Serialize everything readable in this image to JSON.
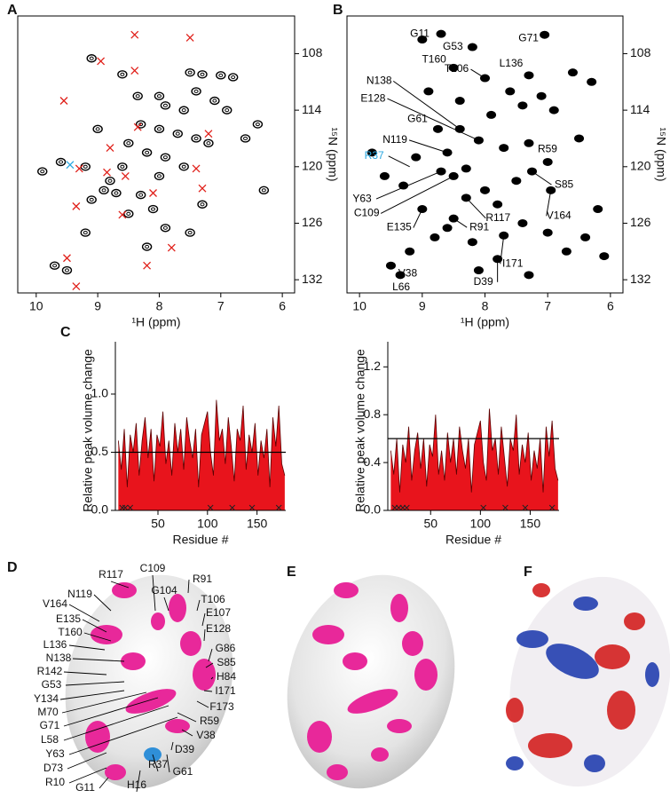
{
  "panel_labels": [
    "A",
    "B",
    "C",
    "D",
    "E",
    "F"
  ],
  "chart_data": [
    {
      "type": "spectrum",
      "x_label": "¹H (ppm)",
      "y_label": "¹⁵N (ppm)",
      "y_axis_side": "right",
      "xlim": [
        10.3,
        5.8
      ],
      "ylim": [
        104,
        133.4
      ],
      "xticks": [
        10,
        9,
        8,
        7,
        6
      ],
      "yticks": [
        108,
        114,
        120,
        126,
        132
      ],
      "series": [
        {
          "marker": "outline",
          "color": "#000000",
          "x": [
            9.1,
            7.5,
            7.3,
            7.0,
            6.8,
            7.4,
            8.0,
            7.9,
            7.6,
            7.1,
            6.9,
            8.3,
            8.0,
            7.7,
            7.4,
            7.2,
            8.5,
            8.2,
            7.9,
            8.6,
            8.8,
            8.9,
            8.7,
            8.3,
            8.0,
            7.6,
            6.4,
            6.6,
            9.6,
            9.2,
            9.1,
            8.5,
            7.9,
            7.5,
            9.2,
            8.2,
            9.7,
            9.5,
            7.3,
            8.1,
            6.3,
            9.9,
            9.0,
            8.35,
            8.6
          ],
          "y": [
            108.5,
            110,
            110.2,
            110.3,
            110.5,
            112,
            112.5,
            113.5,
            114,
            113,
            114,
            115.5,
            116,
            116.5,
            117,
            117.5,
            117.5,
            118.5,
            119,
            120,
            121.5,
            122.5,
            122.8,
            123,
            121,
            120,
            115.5,
            117,
            119.5,
            120,
            123.5,
            125,
            126.5,
            127,
            127,
            128.5,
            130.5,
            131,
            124,
            124.5,
            122.5,
            120.5,
            116,
            112.5,
            110.2
          ]
        },
        {
          "marker": "cross",
          "color": "#e0201a",
          "x": [
            8.4,
            7.5,
            8.95,
            8.4,
            9.55,
            8.35,
            8.8,
            7.2,
            7.4,
            8.85,
            8.55,
            9.3,
            8.1,
            7.3,
            9.35,
            8.6,
            9.5,
            8.2,
            7.8,
            9.35
          ],
          "y": [
            106,
            106.3,
            108.8,
            109.8,
            113,
            115.8,
            118,
            116.5,
            120.2,
            120.6,
            121,
            120.2,
            122.8,
            122.3,
            124.2,
            125.1,
            129.7,
            130.5,
            128.6,
            132.7
          ]
        },
        {
          "marker": "cross",
          "color": "#2aa7e0",
          "x": [
            9.45
          ],
          "y": [
            119.8
          ]
        }
      ]
    },
    {
      "type": "spectrum",
      "x_label": "¹H (ppm)",
      "y_label": "¹⁵N (ppm)",
      "y_axis_side": "right",
      "xlim": [
        10.2,
        5.8
      ],
      "ylim": [
        104,
        133.4
      ],
      "xticks": [
        10,
        9,
        8,
        7,
        6
      ],
      "yticks": [
        108,
        114,
        120,
        126,
        132
      ],
      "series": [
        {
          "marker": "filled",
          "color": "#000000",
          "x": [
            8.7,
            8.2,
            7.05,
            8.5,
            8.0,
            7.3,
            8.4,
            8.1,
            8.75,
            8.6,
            7.3,
            8.7,
            8.5,
            7.25,
            6.95,
            9.0,
            8.3,
            8.5,
            7.7,
            7.8,
            9.5,
            9.35,
            7.6,
            7.4,
            7.1,
            6.9,
            6.6,
            6.3,
            7.9,
            7.7,
            8.3,
            8.9,
            9.1,
            9.3,
            9.6,
            9.8,
            8.0,
            7.5,
            7.0,
            6.5,
            6.2,
            8.6,
            8.2,
            7.8,
            8.8,
            9.2,
            7.4,
            7.0,
            6.7,
            8.1,
            7.3,
            6.4,
            6.1,
            9.0,
            8.4
          ],
          "y": [
            105.9,
            107.3,
            106,
            109.5,
            110.6,
            110.3,
            116,
            117.2,
            116,
            118.5,
            117.5,
            120.5,
            121,
            120.5,
            122.5,
            124.5,
            123.3,
            125.5,
            127.3,
            129.8,
            130.5,
            131.5,
            112,
            113.5,
            112.5,
            114,
            110,
            111,
            114.5,
            118,
            120.2,
            112,
            119,
            122,
            121,
            118.5,
            122.5,
            121.5,
            119.5,
            117,
            124.5,
            126.5,
            128,
            124,
            127.5,
            129,
            126,
            127,
            129,
            131,
            131.5,
            127.5,
            129.5,
            106.5,
            113
          ]
        }
      ],
      "annotations": [
        {
          "text": "G11",
          "x": 8.7,
          "y": 105.9,
          "color": "#000000"
        },
        {
          "text": "G53",
          "x": 8.2,
          "y": 107.3,
          "color": "#000000"
        },
        {
          "text": "G71",
          "x": 7.05,
          "y": 106,
          "color": "#000000"
        },
        {
          "text": "T160",
          "x": 8.5,
          "y": 109.5,
          "color": "#000000"
        },
        {
          "text": "T106",
          "x": 8.0,
          "y": 110.6,
          "color": "#000000"
        },
        {
          "text": "L136",
          "x": 7.3,
          "y": 110.3,
          "color": "#000000"
        },
        {
          "text": "N138",
          "x": 8.4,
          "y": 116,
          "color": "#000000"
        },
        {
          "text": "E128",
          "x": 8.1,
          "y": 117.2,
          "color": "#000000"
        },
        {
          "text": "G61",
          "x": 8.75,
          "y": 116,
          "color": "#000000"
        },
        {
          "text": "N119",
          "x": 8.6,
          "y": 118.5,
          "color": "#000000"
        },
        {
          "text": "R37",
          "x": 9.2,
          "y": 120,
          "color": "#2aa7e0"
        },
        {
          "text": "R59",
          "x": 7.3,
          "y": 117.5,
          "color": "#000000"
        },
        {
          "text": "Y63",
          "x": 8.7,
          "y": 120.5,
          "color": "#000000"
        },
        {
          "text": "C109",
          "x": 8.5,
          "y": 121,
          "color": "#000000"
        },
        {
          "text": "S85",
          "x": 7.25,
          "y": 120.5,
          "color": "#000000"
        },
        {
          "text": "V164",
          "x": 6.95,
          "y": 122.5,
          "color": "#000000"
        },
        {
          "text": "E135",
          "x": 9.0,
          "y": 124.5,
          "color": "#000000"
        },
        {
          "text": "R117",
          "x": 8.3,
          "y": 123.3,
          "color": "#000000"
        },
        {
          "text": "R91",
          "x": 8.5,
          "y": 125.5,
          "color": "#000000"
        },
        {
          "text": "I171",
          "x": 7.7,
          "y": 127.3,
          "color": "#000000"
        },
        {
          "text": "D39",
          "x": 7.8,
          "y": 129.8,
          "color": "#000000"
        },
        {
          "text": "V38",
          "x": 9.5,
          "y": 130.5,
          "color": "#000000"
        },
        {
          "text": "L66",
          "x": 9.35,
          "y": 131.5,
          "color": "#000000"
        }
      ]
    },
    {
      "type": "area",
      "x_label": "Residue #",
      "y_label": "Relative peak volume change",
      "color": "#e8141c",
      "line_color": "#5a0000",
      "xlim": [
        7,
        179
      ],
      "ylim": [
        0,
        1.45
      ],
      "xticks": [
        50,
        100,
        150
      ],
      "yticks": [
        {
          "value": 0,
          "label": "0.0"
        },
        0.5,
        {
          "value": 1,
          "label": "1.0"
        }
      ],
      "threshold": 0.5,
      "missing": [
        14,
        17,
        22,
        103,
        125,
        145,
        172
      ],
      "x": [
        10,
        13,
        16,
        19,
        22,
        25,
        28,
        31,
        34,
        37,
        40,
        43,
        46,
        49,
        52,
        55,
        58,
        61,
        64,
        67,
        70,
        73,
        76,
        79,
        82,
        85,
        88,
        91,
        94,
        97,
        100,
        103,
        106,
        109,
        112,
        115,
        118,
        121,
        124,
        127,
        130,
        133,
        136,
        139,
        142,
        145,
        148,
        151,
        154,
        157,
        160,
        163,
        166,
        169,
        172,
        175,
        178
      ],
      "values": [
        0.6,
        0.35,
        0.7,
        0.2,
        0.65,
        0.5,
        0.75,
        0.3,
        0.6,
        0.8,
        0.45,
        0.7,
        0.25,
        0.65,
        0.55,
        0.85,
        0.4,
        0.6,
        0.3,
        0.75,
        0.5,
        0.7,
        0.35,
        0.8,
        0.6,
        0.45,
        0.7,
        0.2,
        0.65,
        0.75,
        0.85,
        0.5,
        0.3,
        0.95,
        0.6,
        0.7,
        0.4,
        0.8,
        0.55,
        0.25,
        0.7,
        0.6,
        0.9,
        0.35,
        0.65,
        0.5,
        0.75,
        0.3,
        0.6,
        0.45,
        0.7,
        0.2,
        0.8,
        0.55,
        0.9,
        0.4,
        0.3
      ]
    },
    {
      "type": "area",
      "x_label": "Residue #",
      "y_label": "Relative peak volume change",
      "color": "#e8141c",
      "line_color": "#5a0000",
      "xlim": [
        7,
        179
      ],
      "ylim": [
        0,
        1.41
      ],
      "xticks": [
        50,
        100,
        150
      ],
      "yticks": [
        {
          "value": 0,
          "label": "0.0"
        },
        0.4,
        0.8,
        1.2
      ],
      "threshold": 0.6,
      "missing": [
        14,
        18,
        22,
        26,
        103,
        125,
        145,
        172
      ],
      "x": [
        10,
        13,
        16,
        19,
        22,
        25,
        28,
        31,
        34,
        37,
        40,
        43,
        46,
        49,
        52,
        55,
        58,
        61,
        64,
        67,
        70,
        73,
        76,
        79,
        82,
        85,
        88,
        91,
        94,
        97,
        100,
        103,
        106,
        109,
        112,
        115,
        118,
        121,
        124,
        127,
        130,
        133,
        136,
        139,
        142,
        145,
        148,
        151,
        154,
        157,
        160,
        163,
        166,
        169,
        172,
        175,
        178
      ],
      "values": [
        0.5,
        0.3,
        0.6,
        0.15,
        0.55,
        0.4,
        0.7,
        0.25,
        0.5,
        0.65,
        0.35,
        0.6,
        0.2,
        0.55,
        0.45,
        0.8,
        0.3,
        0.5,
        0.25,
        0.65,
        0.4,
        0.6,
        0.3,
        0.7,
        0.5,
        0.35,
        0.6,
        0.15,
        0.55,
        0.65,
        0.75,
        0.4,
        0.25,
        0.85,
        0.5,
        0.6,
        0.3,
        0.7,
        0.45,
        0.2,
        0.6,
        0.5,
        0.8,
        0.3,
        0.55,
        0.4,
        0.65,
        0.25,
        0.5,
        0.35,
        0.6,
        0.15,
        0.7,
        0.45,
        0.75,
        0.35,
        0.25
      ]
    }
  ],
  "structure_labels": [
    "R117",
    "C109",
    "R91",
    "G104",
    "T106",
    "N119",
    "E107",
    "V164",
    "E135",
    "T160",
    "E128",
    "L136",
    "G86",
    "N138",
    "S85",
    "R142",
    "H84",
    "G53",
    "I171",
    "Y134",
    "M70",
    "F173",
    "G71",
    "L58",
    "R59",
    "Y63",
    "V38",
    "D73",
    "D39",
    "R10",
    "G61",
    "R37",
    "H16",
    "G11"
  ]
}
